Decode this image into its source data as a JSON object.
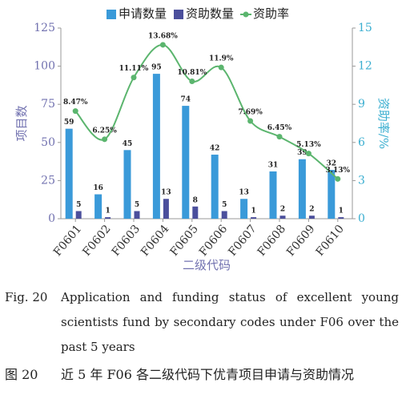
{
  "chart_data": {
    "type": "bar",
    "categories": [
      "F0601",
      "F0602",
      "F0603",
      "F0604",
      "F0605",
      "F0606",
      "F0607",
      "F0608",
      "F0609",
      "F0610"
    ],
    "series": [
      {
        "name": "申请数量",
        "type": "bar",
        "color": "#3a9ad9",
        "values": [
          59,
          16,
          45,
          95,
          74,
          42,
          13,
          31,
          39,
          32
        ]
      },
      {
        "name": "资助数量",
        "type": "bar",
        "color": "#4b4f9c",
        "values": [
          5,
          1,
          5,
          13,
          8,
          5,
          1,
          2,
          2,
          1
        ]
      },
      {
        "name": "资助率",
        "type": "line",
        "axis": "y2",
        "color": "#5bb56e",
        "values": [
          8.47,
          6.25,
          11.11,
          13.68,
          10.81,
          11.9,
          7.69,
          6.45,
          5.13,
          3.13
        ],
        "value_labels": [
          "8.47%",
          "6.25%",
          "11.11%",
          "13.68%",
          "10.81%",
          "11.9%",
          "7.69%",
          "6.45%",
          "5.13%",
          "3.13%"
        ]
      }
    ],
    "ylabel": "项目数",
    "y2label": "资助率/%",
    "xlabel": "二级代码",
    "ylim": [
      0,
      125
    ],
    "yticks": [
      0,
      25,
      50,
      75,
      100,
      125
    ],
    "y2lim": [
      0,
      15
    ],
    "y2ticks": [
      0,
      3,
      6,
      9,
      12,
      15
    ],
    "legend": "top"
  },
  "caption_en": {
    "label": "Fig. 20",
    "text": "Application and funding status of excellent young scientists fund by secondary codes under F06 over the past 5 years"
  },
  "caption_zh": {
    "label": "图 20",
    "text": "近 5 年 F06 各二级代码下优青项目申请与资助情况"
  }
}
